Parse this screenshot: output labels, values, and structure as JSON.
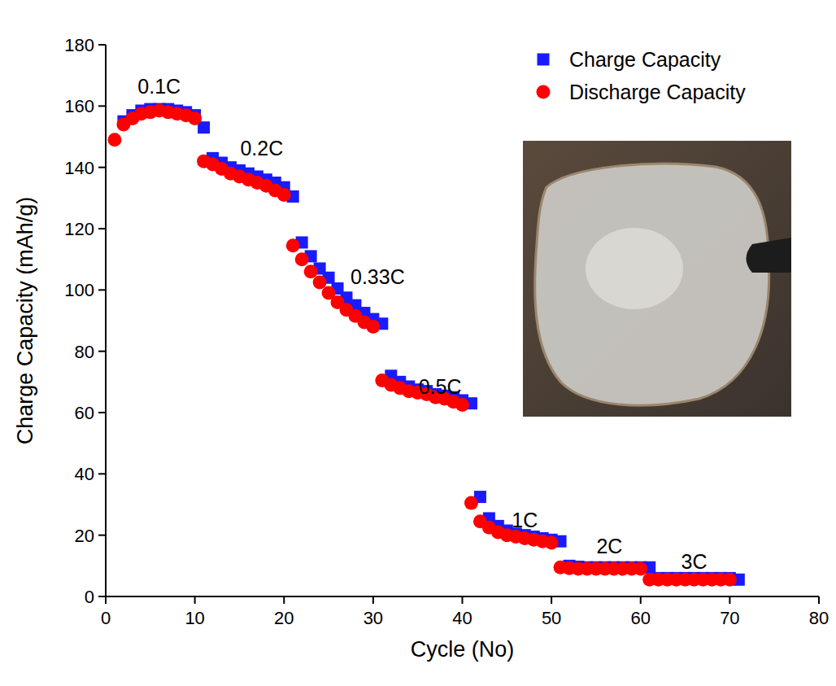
{
  "chart_data": {
    "type": "scatter",
    "x_label": "Cycle (No)",
    "y_label": "Charge Capacity (mAh/g)",
    "x": [
      1,
      2,
      3,
      4,
      5,
      6,
      7,
      8,
      9,
      10,
      11,
      12,
      13,
      14,
      15,
      16,
      17,
      18,
      19,
      20,
      21,
      22,
      23,
      24,
      25,
      26,
      27,
      28,
      29,
      30,
      31,
      32,
      33,
      34,
      35,
      36,
      37,
      38,
      39,
      40,
      41,
      42,
      43,
      44,
      45,
      46,
      47,
      48,
      49,
      50,
      51,
      52,
      53,
      54,
      55,
      56,
      57,
      58,
      59,
      60,
      61,
      62,
      63,
      64,
      65,
      66,
      67,
      68,
      69,
      70,
      71
    ],
    "series": [
      {
        "name": "Charge Capacity",
        "color": "#1a1aff",
        "marker": "square",
        "values": [
          null,
          155,
          157,
          158.5,
          159,
          159,
          159,
          158.5,
          158,
          157,
          153,
          143,
          141.5,
          140,
          139,
          138,
          137,
          136,
          135,
          133.5,
          130.5,
          115.5,
          111,
          107,
          104,
          100.5,
          97.5,
          95,
          92.5,
          90.5,
          89,
          72,
          70,
          68.5,
          67.5,
          67,
          66,
          65.5,
          65,
          64,
          63,
          32.5,
          25.5,
          23,
          21.5,
          20.5,
          20,
          19.5,
          19,
          18.5,
          18,
          10,
          9.7,
          9.5,
          9.5,
          9.5,
          9.5,
          9.5,
          9.5,
          9.5,
          9.5,
          6,
          6,
          6,
          6,
          6,
          6,
          6,
          6,
          6,
          5.5
        ]
      },
      {
        "name": "Discharge Capacity",
        "color": "#ff0000",
        "marker": "circle",
        "values": [
          149,
          154,
          156,
          157.5,
          158,
          158.5,
          158,
          157.5,
          157,
          156,
          142,
          141,
          139.5,
          138,
          137,
          136,
          135,
          134,
          132.5,
          131,
          114.5,
          110,
          106,
          102.5,
          99,
          96,
          93.5,
          91.5,
          89.5,
          88,
          70.5,
          69,
          68,
          67,
          66.5,
          66,
          65,
          64.5,
          63.5,
          62.5,
          30.5,
          24.5,
          22.5,
          21,
          20,
          19.5,
          19,
          18.5,
          18,
          17.5,
          9.5,
          9.2,
          9,
          9,
          9,
          9,
          9,
          9,
          9,
          9,
          5.5,
          5.5,
          5.5,
          5.5,
          5.5,
          5.5,
          5.5,
          5.5,
          5.5,
          5.5,
          null
        ]
      }
    ],
    "annotations": [
      {
        "text": "0.1C",
        "x": 6,
        "y": 164
      },
      {
        "text": "0.2C",
        "x": 17.5,
        "y": 144
      },
      {
        "text": "0.33C",
        "x": 30.5,
        "y": 102
      },
      {
        "text": "0.5C",
        "x": 37.5,
        "y": 66
      },
      {
        "text": "1C",
        "x": 47,
        "y": 22.5
      },
      {
        "text": "2C",
        "x": 56.5,
        "y": 14
      },
      {
        "text": "3C",
        "x": 66,
        "y": 9
      }
    ],
    "xlim": [
      0,
      80
    ],
    "ylim": [
      0,
      180
    ],
    "xticks": [
      0,
      10,
      20,
      30,
      40,
      50,
      60,
      70,
      80
    ],
    "yticks": [
      0,
      20,
      40,
      60,
      80,
      100,
      120,
      140,
      160,
      180
    ],
    "legend": "upper right",
    "grid": false
  }
}
